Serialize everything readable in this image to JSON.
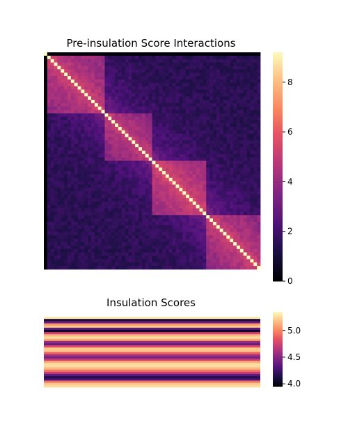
{
  "chart_data": [
    {
      "type": "heatmap",
      "title": "Pre-insulation Score Interactions",
      "n": 64,
      "domains": [
        {
          "start": 0,
          "end": 18,
          "base": 4.6,
          "spread": 0.05
        },
        {
          "start": 18,
          "end": 32,
          "base": 4.4,
          "spread": 0.06
        },
        {
          "start": 32,
          "end": 48,
          "base": 4.8,
          "spread": 0.05
        },
        {
          "start": 48,
          "end": 64,
          "base": 4.6,
          "spread": 0.06
        }
      ],
      "diagonal_value": 9.2,
      "background_value": 1.5,
      "colorbar": {
        "ticks": [
          0,
          2,
          4,
          6,
          8
        ],
        "range": [
          0,
          9.2
        ]
      },
      "colormap": "magma"
    },
    {
      "type": "heatmap",
      "title": "Insulation Scores",
      "rows": [
        5.3,
        4.1,
        4.4,
        5.05,
        5.2,
        4.35,
        4.05,
        4.75,
        5.15,
        5.25,
        5.1,
        4.55,
        4.4,
        4.8,
        5.2,
        5.2,
        4.9,
        4.6,
        4.45,
        4.7,
        5.1,
        5.25,
        5.25,
        5.15,
        4.95,
        4.7,
        4.35,
        4.15,
        4.3,
        4.95,
        5.2,
        5.25
      ],
      "colorbar": {
        "ticks": [
          4.0,
          4.5,
          5.0
        ],
        "range": [
          3.95,
          5.35
        ]
      },
      "colormap": "magma"
    }
  ]
}
